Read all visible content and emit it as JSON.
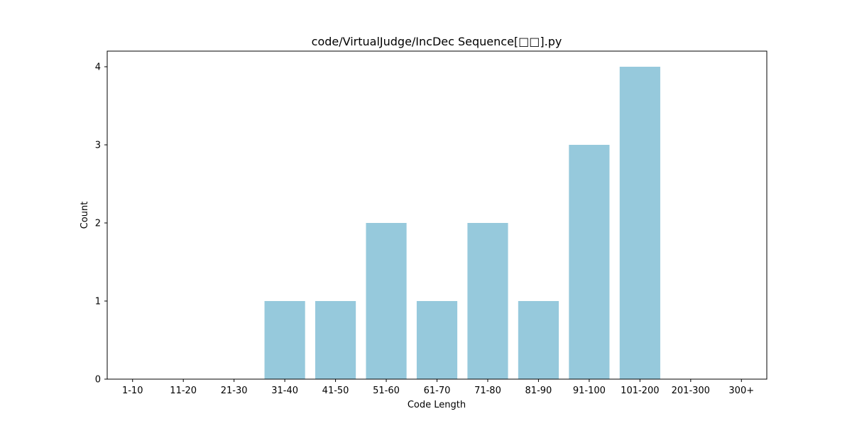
{
  "chart_data": {
    "type": "bar",
    "title": "code/VirtualJudge/IncDec Sequence[□□].py",
    "xlabel": "Code Length",
    "ylabel": "Count",
    "categories": [
      "1-10",
      "11-20",
      "21-30",
      "31-40",
      "41-50",
      "51-60",
      "61-70",
      "71-80",
      "81-90",
      "91-100",
      "101-200",
      "201-300",
      "300+"
    ],
    "values": [
      0,
      0,
      0,
      1,
      1,
      2,
      1,
      2,
      1,
      3,
      4,
      0,
      0
    ],
    "ylim": [
      0,
      4.2
    ],
    "yticks": [
      0,
      1,
      2,
      3,
      4
    ],
    "bar_color": "#96c9dc",
    "grid": false,
    "legend": "none"
  }
}
